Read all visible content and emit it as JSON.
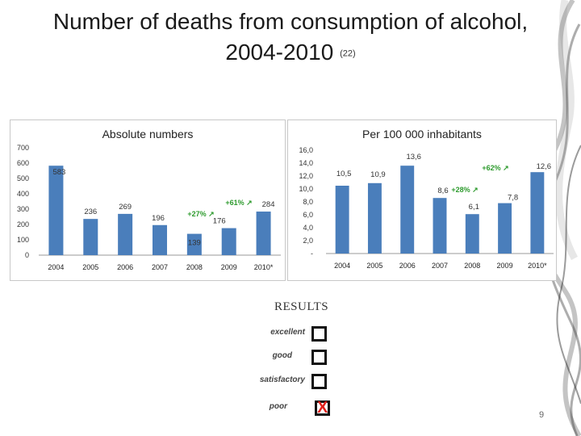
{
  "slide": {
    "title_line1": "Number of deaths from consumption of alcohol,",
    "title_line2": "2004-2010",
    "title_ref": "(22)",
    "page_number": "9"
  },
  "chart_data": [
    {
      "type": "bar",
      "title": "Absolute numbers",
      "categories": [
        "2004",
        "2005",
        "2006",
        "2007",
        "2008",
        "2009",
        "2010*"
      ],
      "values": [
        583,
        236,
        269,
        196,
        139,
        176,
        284
      ],
      "data_labels": [
        "583",
        "236",
        "269",
        "196",
        "139",
        "176",
        "284"
      ],
      "ylim": [
        0,
        700
      ],
      "yticks": [
        "0",
        "100",
        "200",
        "300",
        "400",
        "500",
        "600",
        "700"
      ],
      "bar_color": "#4a7ebb",
      "annotations": [
        {
          "text": "+27% ↗",
          "color": "#2e9b2e"
        },
        {
          "text": "+61% ↗",
          "color": "#2e9b2e"
        }
      ]
    },
    {
      "type": "bar",
      "title": "Per  100 000 inhabitants",
      "categories": [
        "2004",
        "2005",
        "2006",
        "2007",
        "2008",
        "2009",
        "2010*"
      ],
      "values": [
        10.5,
        10.9,
        13.6,
        8.6,
        6.1,
        7.8,
        12.6
      ],
      "data_labels": [
        "10,5",
        "10,9",
        "13,6",
        "8,6",
        "6,1",
        "7,8",
        "12,6"
      ],
      "ylim": [
        0,
        16
      ],
      "yticks": [
        "-",
        "2,0",
        "4,0",
        "6,0",
        "8,0",
        "10,0",
        "12,0",
        "14,0",
        "16,0"
      ],
      "bar_color": "#4a7ebb",
      "annotations": [
        {
          "text": "+28% ↗",
          "color": "#2e9b2e"
        },
        {
          "text": "+62% ↗",
          "color": "#2e9b2e"
        }
      ]
    }
  ],
  "results": {
    "heading": "RESULTS",
    "items": [
      {
        "label": "excellent",
        "checked": false
      },
      {
        "label": "good",
        "checked": false
      },
      {
        "label": "satisfactory",
        "checked": false
      },
      {
        "label": "poor",
        "checked": true
      }
    ],
    "mark_symbol": "X"
  }
}
